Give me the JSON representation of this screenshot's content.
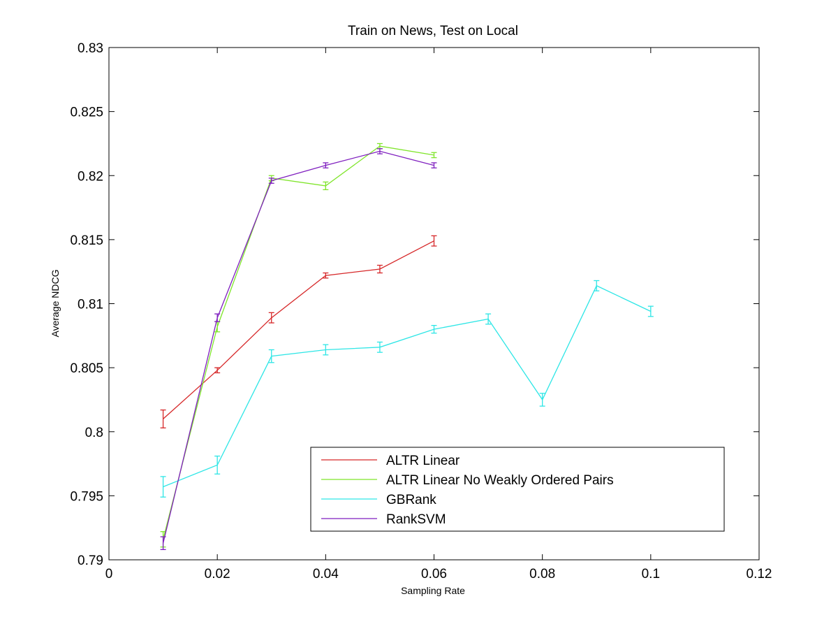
{
  "chart_data": {
    "type": "line",
    "title": "Train on News, Test on Local",
    "xlabel": "Sampling Rate",
    "ylabel": "Average NDCG",
    "xlim": [
      0,
      0.12
    ],
    "ylim": [
      0.79,
      0.83
    ],
    "x_ticks": [
      "0",
      "0.02",
      "0.04",
      "0.06",
      "0.08",
      "0.1",
      "0.12"
    ],
    "y_ticks": [
      "0.79",
      "0.795",
      "0.8",
      "0.805",
      "0.81",
      "0.815",
      "0.82",
      "0.825",
      "0.83"
    ],
    "x_tick_values": [
      0,
      0.02,
      0.04,
      0.06,
      0.08,
      0.1,
      0.12
    ],
    "y_tick_values": [
      0.79,
      0.795,
      0.8,
      0.805,
      0.81,
      0.815,
      0.82,
      0.825,
      0.83
    ],
    "grid": false,
    "legend_position": "bottom-right",
    "series": [
      {
        "name": "ALTR Linear",
        "color": "#d62728",
        "x": [
          0.01,
          0.02,
          0.03,
          0.04,
          0.05,
          0.06
        ],
        "y": [
          0.801,
          0.8048,
          0.8089,
          0.8122,
          0.8127,
          0.8149
        ],
        "err": [
          0.0007,
          0.0002,
          0.0004,
          0.0002,
          0.0003,
          0.0004
        ]
      },
      {
        "name": "ALTR Linear No Weakly Ordered Pairs",
        "color": "#7fe52a",
        "x": [
          0.01,
          0.02,
          0.03,
          0.04,
          0.05,
          0.06
        ],
        "y": [
          0.7916,
          0.8082,
          0.8198,
          0.8192,
          0.8223,
          0.8216
        ],
        "err": [
          0.0006,
          0.0004,
          0.0002,
          0.0003,
          0.0002,
          0.0002
        ]
      },
      {
        "name": "GBRank",
        "color": "#2ee6e6",
        "x": [
          0.01,
          0.02,
          0.03,
          0.04,
          0.05,
          0.06,
          0.07,
          0.08,
          0.09,
          0.1
        ],
        "y": [
          0.7957,
          0.7974,
          0.8059,
          0.8064,
          0.8066,
          0.808,
          0.8088,
          0.8025,
          0.8114,
          0.8094
        ],
        "err": [
          0.0008,
          0.0007,
          0.0005,
          0.0004,
          0.0004,
          0.0003,
          0.0004,
          0.0005,
          0.0004,
          0.0004
        ]
      },
      {
        "name": "RankSVM",
        "color": "#7f1fbf",
        "x": [
          0.01,
          0.02,
          0.03,
          0.04,
          0.05,
          0.06
        ],
        "y": [
          0.7913,
          0.8089,
          0.8196,
          0.8208,
          0.8219,
          0.8208
        ],
        "err": [
          0.0005,
          0.0003,
          0.0002,
          0.0002,
          0.0002,
          0.0002
        ]
      }
    ]
  }
}
